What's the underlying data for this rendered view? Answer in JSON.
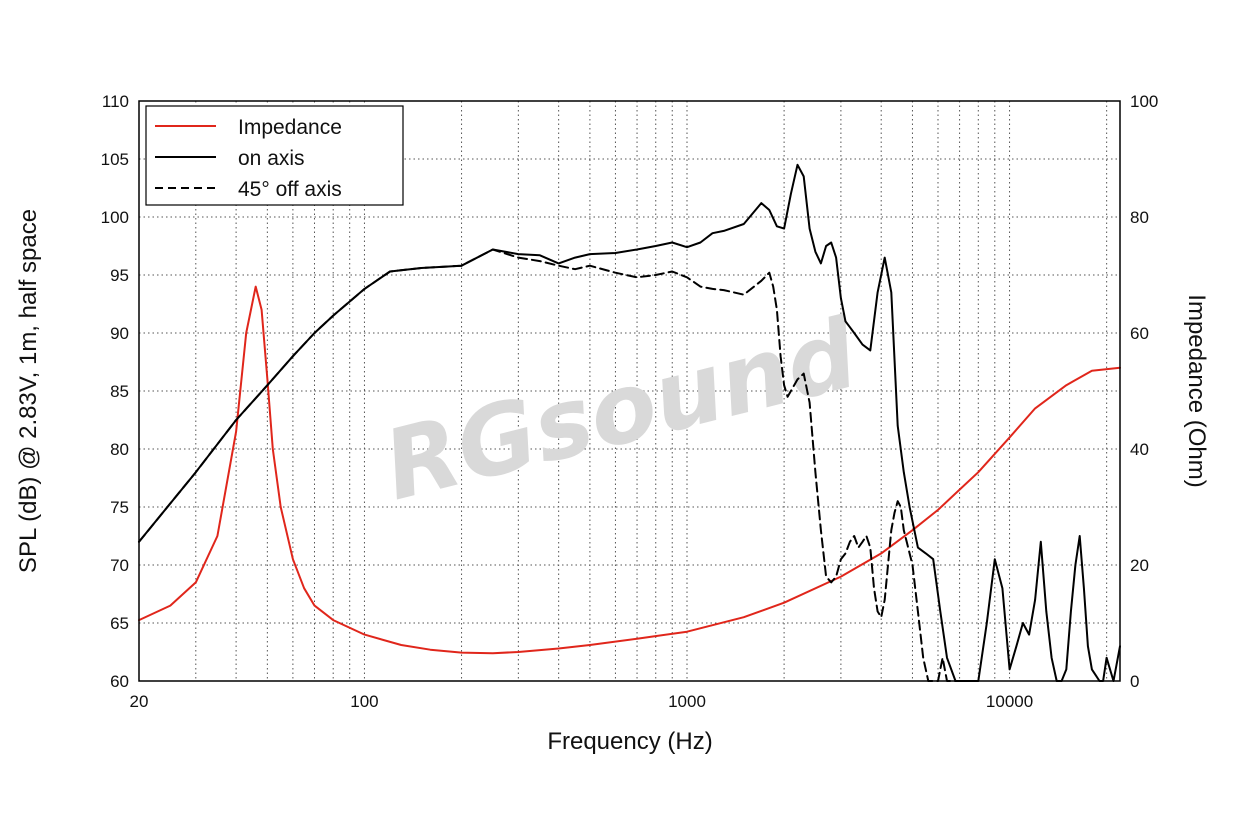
{
  "watermark": "RGsound",
  "chart_data": {
    "type": "line",
    "xlabel": "Frequency (Hz)",
    "ylabel": "SPL (dB) @ 2.83V, 1m, half space",
    "y2label": "Impedance (Ohm)",
    "xscale": "log",
    "xlim": [
      20,
      22000
    ],
    "ylim": [
      60,
      110
    ],
    "y2lim": [
      0,
      100
    ],
    "x_ticks": [
      20,
      100,
      1000,
      10000
    ],
    "y_ticks": [
      60,
      65,
      70,
      75,
      80,
      85,
      90,
      95,
      100,
      105,
      110
    ],
    "y2_ticks": [
      0,
      20,
      40,
      60,
      80,
      100
    ],
    "grid": true,
    "legend_position": "top-left",
    "colors": {
      "Impedance": "#e0261b",
      "on axis": "#000000",
      "45° off axis": "#000000"
    },
    "series": [
      {
        "name": "Impedance",
        "axis": "right",
        "style": "solid",
        "x": [
          20,
          25,
          30,
          35,
          40,
          43,
          46,
          48,
          50,
          52,
          55,
          60,
          65,
          70,
          80,
          100,
          130,
          160,
          200,
          250,
          300,
          400,
          500,
          700,
          1000,
          1500,
          2000,
          3000,
          4000,
          5000,
          6000,
          7000,
          8000,
          10000,
          12000,
          15000,
          18000,
          22000
        ],
        "values": [
          10.5,
          13,
          17,
          25,
          43,
          60,
          68,
          64,
          52,
          40,
          30,
          21,
          16,
          13,
          10.5,
          8,
          6.2,
          5.4,
          4.9,
          4.8,
          5,
          5.6,
          6.2,
          7.3,
          8.5,
          11,
          13.5,
          18,
          22,
          26,
          29.5,
          33,
          36,
          42,
          47,
          51,
          53.5,
          54
        ]
      },
      {
        "name": "on axis",
        "axis": "left",
        "style": "solid",
        "x": [
          20,
          30,
          40,
          50,
          60,
          70,
          80,
          100,
          120,
          150,
          200,
          250,
          300,
          350,
          400,
          450,
          500,
          600,
          700,
          800,
          900,
          1000,
          1100,
          1200,
          1300,
          1500,
          1700,
          1800,
          1900,
          2000,
          2100,
          2200,
          2300,
          2400,
          2500,
          2600,
          2700,
          2800,
          2900,
          3000,
          3100,
          3200,
          3300,
          3500,
          3700,
          3900,
          4100,
          4300,
          4500,
          4700,
          4900,
          5200,
          5500,
          5800,
          6100,
          6400,
          6800,
          7200,
          7600,
          8000,
          8500,
          9000,
          9500,
          10000,
          10500,
          11000,
          11500,
          12000,
          12500,
          13000,
          13500,
          14000,
          14500,
          15000,
          15500,
          16000,
          16500,
          17000,
          17500,
          18000,
          18500,
          19000,
          19500,
          20000,
          21000,
          22000
        ],
        "values": [
          72,
          78,
          82.5,
          85.5,
          88,
          90,
          91.5,
          93.8,
          95.3,
          95.6,
          95.8,
          97.2,
          96.8,
          96.7,
          96,
          96.5,
          96.8,
          96.9,
          97.2,
          97.5,
          97.8,
          97.4,
          97.8,
          98.6,
          98.8,
          99.4,
          101.2,
          100.6,
          99.2,
          99,
          102,
          104.5,
          103.5,
          99,
          97,
          96,
          97.5,
          97.8,
          96.5,
          93,
          91,
          90.5,
          90,
          89,
          88.5,
          93.5,
          96.5,
          93.5,
          82,
          78,
          75,
          71.5,
          71,
          70.5,
          66,
          62,
          60,
          57,
          54,
          58,
          65,
          70.5,
          68,
          61,
          63,
          65,
          64,
          67,
          72,
          66,
          62,
          59,
          58,
          61,
          66,
          70,
          72.5,
          68,
          63,
          61,
          60.5,
          60,
          59.5,
          62,
          60,
          63
        ]
      },
      {
        "name": "45° off axis",
        "axis": "left",
        "style": "dashed",
        "x": [
          20,
          30,
          40,
          50,
          60,
          70,
          80,
          100,
          120,
          150,
          200,
          250,
          300,
          350,
          400,
          450,
          500,
          600,
          700,
          800,
          900,
          1000,
          1100,
          1200,
          1300,
          1500,
          1700,
          1800,
          1850,
          1900,
          1950,
          2000,
          2050,
          2100,
          2200,
          2300,
          2400,
          2500,
          2600,
          2700,
          2800,
          2900,
          3000,
          3100,
          3200,
          3300,
          3400,
          3500,
          3600,
          3700,
          3800,
          3900,
          4000,
          4100,
          4200,
          4300,
          4400,
          4500,
          4600,
          4700,
          4800,
          4900,
          5000,
          5200,
          5400,
          5600,
          5800,
          6000,
          6200,
          6400,
          6600,
          6800,
          7000
        ],
        "values": [
          72,
          78,
          82.5,
          85.5,
          88,
          90,
          91.5,
          93.8,
          95.3,
          95.6,
          95.8,
          97.2,
          96.5,
          96.2,
          95.8,
          95.5,
          95.8,
          95.2,
          94.8,
          95,
          95.3,
          94.8,
          94,
          93.8,
          93.7,
          93.3,
          94.5,
          95.2,
          94,
          92,
          88,
          85.5,
          84.5,
          85,
          86,
          86.5,
          84,
          78,
          73,
          69,
          68.5,
          69,
          70.5,
          71,
          72,
          72.5,
          71.5,
          72,
          72.5,
          71.5,
          68,
          66,
          65.5,
          67,
          70,
          73,
          74.5,
          75.5,
          75,
          73,
          72,
          71,
          70,
          66,
          62,
          58,
          57,
          59,
          62,
          58,
          57,
          58,
          57
        ]
      }
    ]
  }
}
